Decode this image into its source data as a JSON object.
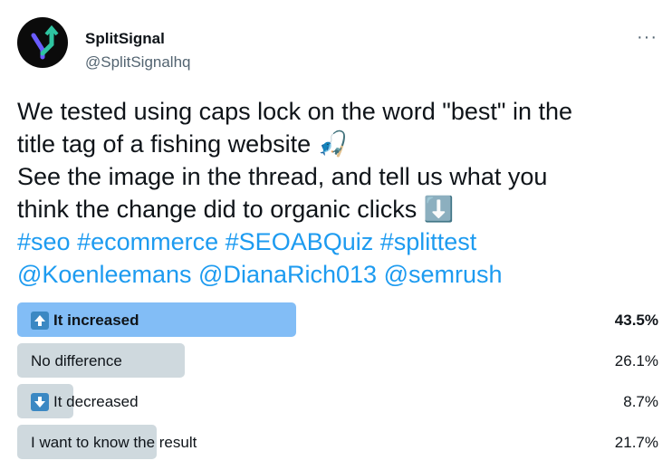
{
  "author": {
    "name": "SplitSignal",
    "handle": "@SplitSignalhq"
  },
  "tweet": {
    "lines": [
      "We tested using caps lock on the word \"best\" in the",
      "title tag of a fishing website 🎣",
      "See the image in the thread, and tell us what you",
      "think the change did to organic clicks ⬇️"
    ],
    "hashtags": [
      "#seo",
      "#ecommerce",
      "#SEOABQuiz",
      "#splittest"
    ],
    "mentions": [
      "@Koenleemans",
      "@DianaRich013",
      "@semrush"
    ]
  },
  "poll": {
    "options": [
      {
        "label": "It increased",
        "value": 43.5,
        "value_label": "43.5%"
      },
      {
        "label": "No difference",
        "value": 26.1,
        "value_label": "26.1%"
      },
      {
        "label": "It decreased",
        "value": 8.7,
        "value_label": "8.7%"
      },
      {
        "label": "I want to know the result",
        "value": 21.7,
        "value_label": "21.7%"
      }
    ]
  }
}
